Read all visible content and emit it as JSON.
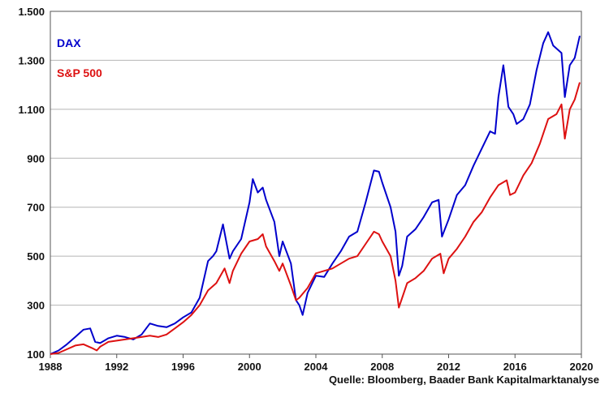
{
  "chart_data": {
    "type": "line",
    "title": "",
    "xlabel": "",
    "ylabel": "",
    "xlim": [
      1988,
      2020
    ],
    "ylim": [
      100,
      1500
    ],
    "x_ticks": [
      1988,
      1992,
      1996,
      2000,
      2004,
      2008,
      2012,
      2016,
      2020
    ],
    "x_tick_labels": [
      "1988",
      "1992",
      "1996",
      "2000",
      "2004",
      "2008",
      "2012",
      "2016",
      "2020"
    ],
    "y_ticks": [
      100,
      300,
      500,
      700,
      900,
      1100,
      1300,
      1500
    ],
    "y_tick_labels": [
      "100",
      "300",
      "500",
      "700",
      "900",
      "1.100",
      "1.300",
      "1.500"
    ],
    "grid": "horizontal",
    "legend_position": "top-left",
    "series": [
      {
        "name": "DAX",
        "color": "#0000cc",
        "points": [
          [
            1988.0,
            100
          ],
          [
            1988.5,
            115
          ],
          [
            1989.0,
            140
          ],
          [
            1989.5,
            170
          ],
          [
            1990.0,
            200
          ],
          [
            1990.4,
            205
          ],
          [
            1990.7,
            150
          ],
          [
            1991.0,
            145
          ],
          [
            1991.5,
            165
          ],
          [
            1992.0,
            175
          ],
          [
            1992.5,
            170
          ],
          [
            1993.0,
            160
          ],
          [
            1993.5,
            180
          ],
          [
            1994.0,
            225
          ],
          [
            1994.5,
            215
          ],
          [
            1995.0,
            210
          ],
          [
            1995.5,
            225
          ],
          [
            1996.0,
            250
          ],
          [
            1996.5,
            270
          ],
          [
            1997.0,
            330
          ],
          [
            1997.5,
            480
          ],
          [
            1997.8,
            500
          ],
          [
            1998.0,
            520
          ],
          [
            1998.4,
            630
          ],
          [
            1998.8,
            490
          ],
          [
            1999.0,
            520
          ],
          [
            1999.5,
            570
          ],
          [
            2000.0,
            720
          ],
          [
            2000.2,
            815
          ],
          [
            2000.5,
            760
          ],
          [
            2000.8,
            780
          ],
          [
            2001.0,
            730
          ],
          [
            2001.5,
            640
          ],
          [
            2001.8,
            500
          ],
          [
            2002.0,
            560
          ],
          [
            2002.5,
            470
          ],
          [
            2002.8,
            320
          ],
          [
            2003.0,
            300
          ],
          [
            2003.2,
            260
          ],
          [
            2003.5,
            350
          ],
          [
            2004.0,
            420
          ],
          [
            2004.5,
            415
          ],
          [
            2005.0,
            470
          ],
          [
            2005.5,
            520
          ],
          [
            2006.0,
            580
          ],
          [
            2006.5,
            600
          ],
          [
            2007.0,
            720
          ],
          [
            2007.5,
            850
          ],
          [
            2007.8,
            845
          ],
          [
            2008.0,
            800
          ],
          [
            2008.5,
            700
          ],
          [
            2008.8,
            600
          ],
          [
            2009.0,
            420
          ],
          [
            2009.2,
            460
          ],
          [
            2009.5,
            580
          ],
          [
            2010.0,
            610
          ],
          [
            2010.5,
            660
          ],
          [
            2011.0,
            720
          ],
          [
            2011.4,
            730
          ],
          [
            2011.6,
            580
          ],
          [
            2012.0,
            650
          ],
          [
            2012.5,
            750
          ],
          [
            2013.0,
            790
          ],
          [
            2013.5,
            870
          ],
          [
            2014.0,
            940
          ],
          [
            2014.5,
            1010
          ],
          [
            2014.8,
            1000
          ],
          [
            2015.0,
            1150
          ],
          [
            2015.3,
            1280
          ],
          [
            2015.6,
            1110
          ],
          [
            2015.9,
            1080
          ],
          [
            2016.1,
            1040
          ],
          [
            2016.5,
            1060
          ],
          [
            2016.9,
            1120
          ],
          [
            2017.3,
            1260
          ],
          [
            2017.7,
            1370
          ],
          [
            2018.0,
            1415
          ],
          [
            2018.3,
            1360
          ],
          [
            2018.8,
            1330
          ],
          [
            2019.0,
            1150
          ],
          [
            2019.3,
            1280
          ],
          [
            2019.6,
            1310
          ],
          [
            2019.9,
            1400
          ]
        ]
      },
      {
        "name": "S&P 500",
        "color": "#dd1111",
        "points": [
          [
            1988.0,
            100
          ],
          [
            1988.5,
            105
          ],
          [
            1989.0,
            120
          ],
          [
            1989.5,
            135
          ],
          [
            1990.0,
            140
          ],
          [
            1990.5,
            125
          ],
          [
            1990.8,
            115
          ],
          [
            1991.0,
            130
          ],
          [
            1991.5,
            150
          ],
          [
            1992.0,
            155
          ],
          [
            1992.5,
            160
          ],
          [
            1993.0,
            165
          ],
          [
            1993.5,
            170
          ],
          [
            1994.0,
            175
          ],
          [
            1994.5,
            170
          ],
          [
            1995.0,
            180
          ],
          [
            1995.5,
            205
          ],
          [
            1996.0,
            230
          ],
          [
            1996.5,
            260
          ],
          [
            1997.0,
            300
          ],
          [
            1997.5,
            360
          ],
          [
            1998.0,
            390
          ],
          [
            1998.5,
            450
          ],
          [
            1998.8,
            390
          ],
          [
            1999.0,
            440
          ],
          [
            1999.5,
            510
          ],
          [
            2000.0,
            560
          ],
          [
            2000.5,
            570
          ],
          [
            2000.8,
            590
          ],
          [
            2001.0,
            540
          ],
          [
            2001.5,
            480
          ],
          [
            2001.8,
            440
          ],
          [
            2002.0,
            470
          ],
          [
            2002.5,
            380
          ],
          [
            2002.8,
            320
          ],
          [
            2003.0,
            330
          ],
          [
            2003.5,
            370
          ],
          [
            2004.0,
            430
          ],
          [
            2004.5,
            440
          ],
          [
            2005.0,
            450
          ],
          [
            2005.5,
            470
          ],
          [
            2006.0,
            490
          ],
          [
            2006.5,
            500
          ],
          [
            2007.0,
            550
          ],
          [
            2007.5,
            600
          ],
          [
            2007.8,
            590
          ],
          [
            2008.0,
            560
          ],
          [
            2008.5,
            500
          ],
          [
            2008.8,
            400
          ],
          [
            2009.0,
            290
          ],
          [
            2009.2,
            330
          ],
          [
            2009.5,
            390
          ],
          [
            2010.0,
            410
          ],
          [
            2010.5,
            440
          ],
          [
            2011.0,
            490
          ],
          [
            2011.5,
            510
          ],
          [
            2011.7,
            430
          ],
          [
            2012.0,
            490
          ],
          [
            2012.5,
            530
          ],
          [
            2013.0,
            580
          ],
          [
            2013.5,
            640
          ],
          [
            2014.0,
            680
          ],
          [
            2014.5,
            740
          ],
          [
            2015.0,
            790
          ],
          [
            2015.5,
            810
          ],
          [
            2015.7,
            750
          ],
          [
            2016.0,
            760
          ],
          [
            2016.5,
            830
          ],
          [
            2017.0,
            880
          ],
          [
            2017.5,
            960
          ],
          [
            2018.0,
            1060
          ],
          [
            2018.5,
            1080
          ],
          [
            2018.8,
            1120
          ],
          [
            2019.0,
            980
          ],
          [
            2019.3,
            1100
          ],
          [
            2019.6,
            1140
          ],
          [
            2019.9,
            1210
          ]
        ]
      }
    ],
    "source": "Quelle: Bloomberg, Baader Bank Kapitalmarktanalyse"
  }
}
